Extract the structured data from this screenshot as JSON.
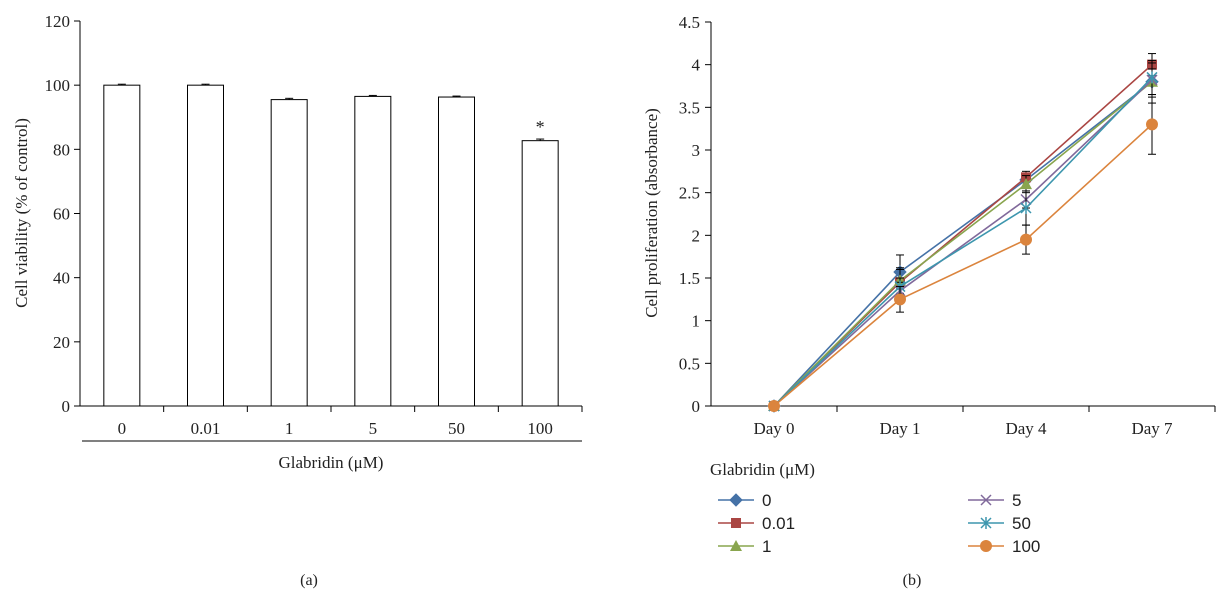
{
  "panel_labels": [
    "(a)",
    "(b)"
  ],
  "chart_data": [
    {
      "type": "bar",
      "panel": "(a)",
      "categories": [
        "0",
        "0.01",
        "1",
        "5",
        "50",
        "100"
      ],
      "values": [
        100,
        100,
        95.5,
        96.5,
        96.3,
        82.7
      ],
      "errors": [
        0.3,
        0.3,
        0.4,
        0.3,
        0.3,
        0.5
      ],
      "ylabel": "Cell viability (% of control)",
      "xlabel": "Glabridin (μM)",
      "ylim": [
        0,
        120
      ],
      "yticks": [
        "0",
        "20",
        "40",
        "60",
        "80",
        "100",
        "120"
      ],
      "annotations": [
        {
          "category": "100",
          "text": "*"
        }
      ],
      "grid": false
    },
    {
      "type": "line",
      "panel": "(b)",
      "categories": [
        "Day 0",
        "Day 1",
        "Day 4",
        "Day 7"
      ],
      "ylabel": "Cell proliferation (absorbance)",
      "ylim": [
        0,
        4.5
      ],
      "yticks": [
        "0",
        "0.5",
        "1",
        "1.5",
        "2",
        "2.5",
        "3",
        "3.5",
        "4",
        "4.5"
      ],
      "legend_title": "Glabridin (μM)",
      "legend_position": "bottom",
      "grid": false,
      "series": [
        {
          "name": "0",
          "values": [
            0,
            1.57,
            2.65,
            3.8
          ],
          "errors": [
            0,
            0.2,
            0.1,
            0.25
          ],
          "color": "#4572A7",
          "marker": "diamond"
        },
        {
          "name": "0.01",
          "values": [
            0,
            1.45,
            2.68,
            4.0
          ],
          "errors": [
            0,
            0.15,
            0.05,
            0.13
          ],
          "color": "#AA4643",
          "marker": "square"
        },
        {
          "name": "1",
          "values": [
            0,
            1.47,
            2.6,
            3.8
          ],
          "errors": [
            0,
            0.15,
            0.1,
            0.15
          ],
          "color": "#89A54E",
          "marker": "triangle"
        },
        {
          "name": "5",
          "values": [
            0,
            1.35,
            2.42,
            3.82
          ],
          "errors": [
            0,
            0.1,
            0.1,
            0.2
          ],
          "color": "#80699B",
          "marker": "x"
        },
        {
          "name": "50",
          "values": [
            0,
            1.4,
            2.32,
            3.85
          ],
          "errors": [
            0,
            0.1,
            0.2,
            0.2
          ],
          "color": "#3D96AE",
          "marker": "star"
        },
        {
          "name": "100",
          "values": [
            0,
            1.25,
            1.95,
            3.3
          ],
          "errors": [
            0,
            0.15,
            0.17,
            0.35
          ],
          "color": "#DB843D",
          "marker": "circle"
        }
      ]
    }
  ]
}
